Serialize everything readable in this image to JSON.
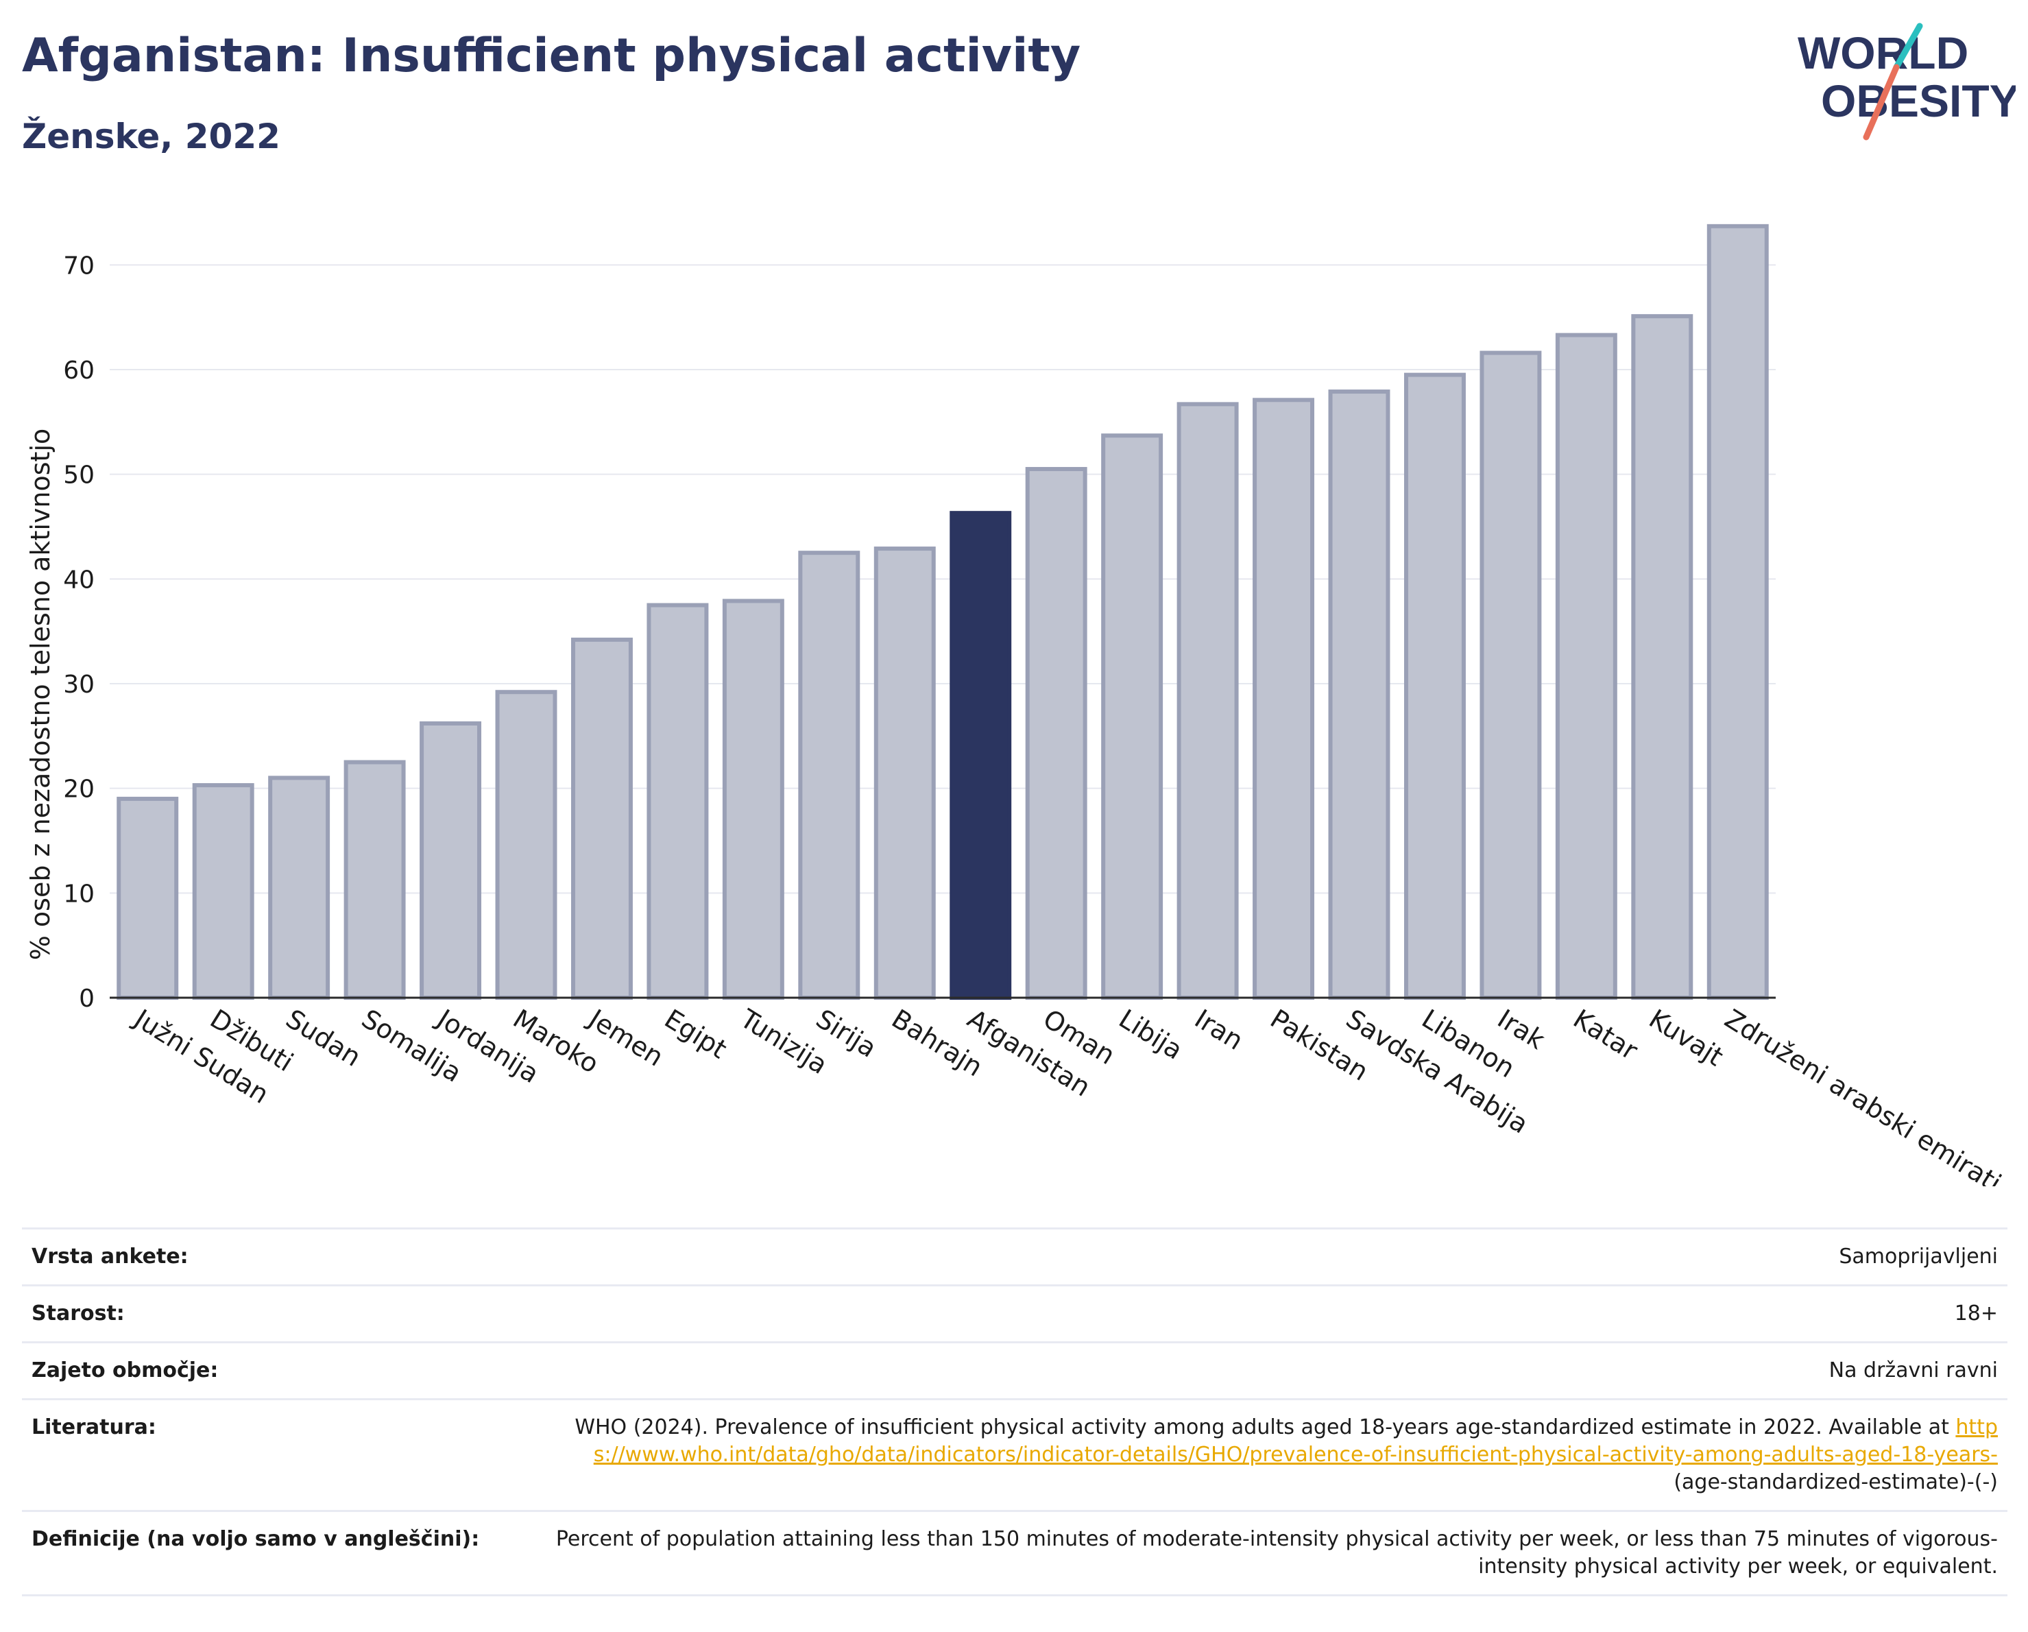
{
  "header": {
    "title": "Afganistan: Insufficient physical activity",
    "subtitle": "Ženske, 2022"
  },
  "logo": {
    "line1": "WORLD",
    "line2": "OBESITY"
  },
  "colors": {
    "highlight": "#2b3560",
    "bar_fill": "#bfc3d0",
    "bar_stroke": "#9aa0b6",
    "link": "#e8a800",
    "accent_teal": "#2bbfbf",
    "accent_coral": "#e8705a"
  },
  "chart_data": {
    "type": "bar",
    "title": "Afganistan: Insufficient physical activity",
    "subtitle": "Ženske, 2022",
    "xlabel": "",
    "ylabel": "% oseb z nezadostno telesno aktivnostjo",
    "ylim": [
      0,
      75
    ],
    "yticks": [
      0,
      10,
      20,
      30,
      40,
      50,
      60,
      70
    ],
    "grid": true,
    "highlight": "Afganistan",
    "categories": [
      "Južni Sudan",
      "Džibuti",
      "Sudan",
      "Somalija",
      "Jordanija",
      "Maroko",
      "Jemen",
      "Egipt",
      "Tunizija",
      "Sirija",
      "Bahrajn",
      "Afganistan",
      "Oman",
      "Libija",
      "Iran",
      "Pakistan",
      "Savdska Arabija",
      "Libanon",
      "Irak",
      "Katar",
      "Kuvajt",
      "Združeni arabski emirati"
    ],
    "values": [
      19.0,
      20.3,
      21.0,
      22.5,
      26.2,
      29.2,
      34.2,
      37.5,
      37.9,
      42.5,
      42.9,
      46.3,
      50.5,
      53.7,
      56.7,
      57.1,
      57.9,
      59.5,
      61.6,
      63.3,
      65.1,
      73.7
    ]
  },
  "info": {
    "survey_label": "Vrsta ankete:",
    "survey_value": "Samoprijavljeni",
    "age_label": "Starost:",
    "age_value": "18+",
    "area_label": "Zajeto območje:",
    "area_value": "Na državni ravni",
    "lit_label": "Literatura:",
    "lit_text": "WHO (2024). Prevalence of insufficient physical activity among adults aged 18-years age-standardized estimate in 2022. Available at",
    "lit_link": "https://www.who.int/data/gho/data/indicators/indicator-details/GHO/prevalence-of-insufficient-physical-activity-among-adults-aged-18-years-",
    "lit_suffix": "(age-standardized-estimate)-(-)",
    "def_label": "Definicije (na voljo samo v angleščini):",
    "def_text": "Percent of population attaining less than 150 minutes of moderate-intensity physical activity per week, or less than 75 minutes of vigorous-intensity physical activity per week, or equivalent."
  }
}
